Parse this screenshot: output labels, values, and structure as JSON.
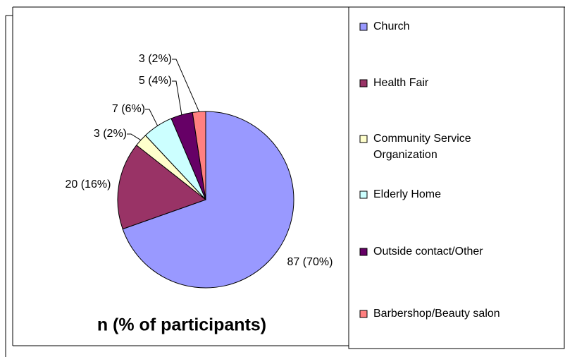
{
  "chart_data": {
    "type": "pie",
    "title": "n (% of participants)",
    "categories": [
      "Church",
      "Health Fair",
      "Community Service Organization",
      "Elderly Home",
      "Outside contact/Other",
      "Barbershop/Beauty salon"
    ],
    "values": [
      87,
      20,
      3,
      7,
      5,
      3
    ],
    "value_labels": [
      "87 (70%)",
      "20 (16%)",
      "3 (2%)",
      "7 (6%)",
      "5 (4%)",
      "3 (2%)"
    ],
    "colors": [
      "#9999ff",
      "#993366",
      "#ffffcc",
      "#ccffff",
      "#660066",
      "#ff8080"
    ],
    "legend": "right"
  }
}
